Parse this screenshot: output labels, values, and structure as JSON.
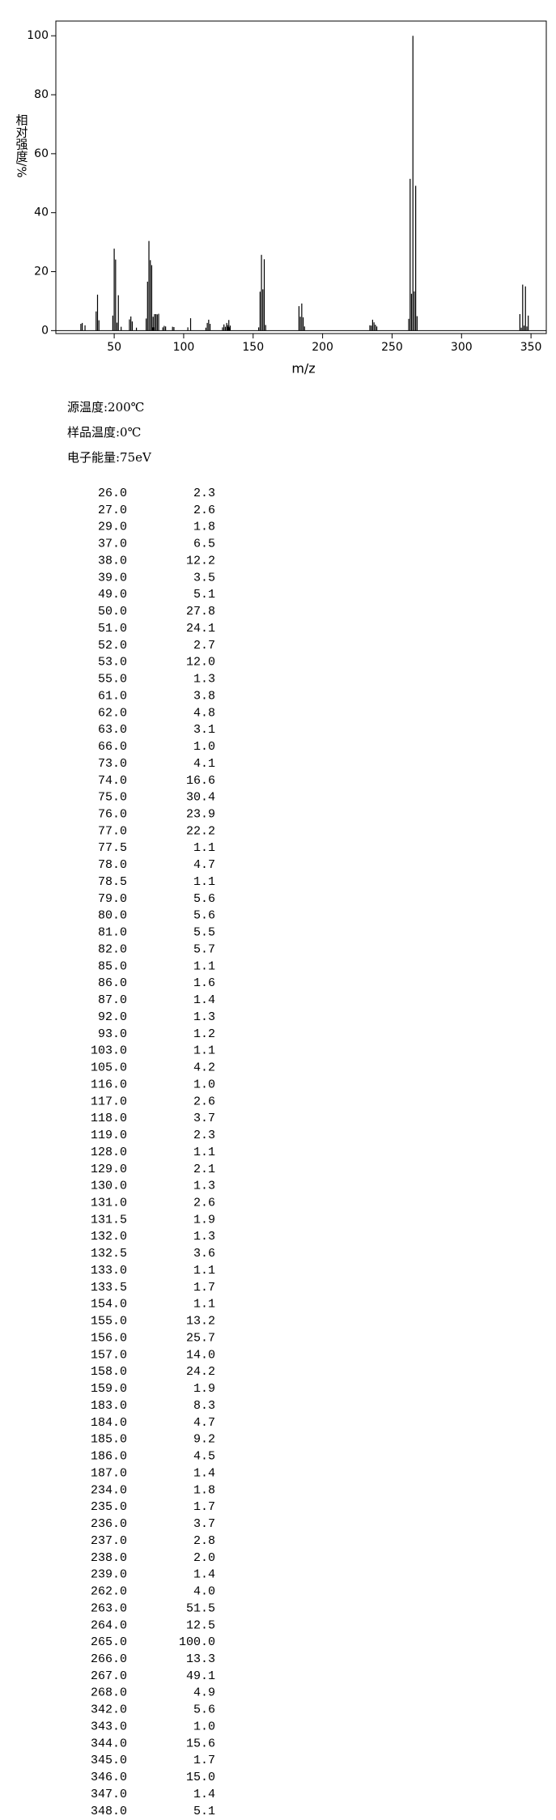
{
  "chart_data": {
    "type": "spectrum",
    "xlabel": "m/z",
    "ylabel": "相对强度/%",
    "color": "#000000",
    "x": [
      26.0,
      27.0,
      29.0,
      37.0,
      38.0,
      39.0,
      49.0,
      50.0,
      51.0,
      52.0,
      53.0,
      55.0,
      61.0,
      62.0,
      63.0,
      66.0,
      73.0,
      74.0,
      75.0,
      76.0,
      77.0,
      77.5,
      78.0,
      78.5,
      79.0,
      80.0,
      81.0,
      82.0,
      85.0,
      86.0,
      87.0,
      92.0,
      93.0,
      103.0,
      105.0,
      116.0,
      117.0,
      118.0,
      119.0,
      128.0,
      129.0,
      130.0,
      131.0,
      131.5,
      132.0,
      132.5,
      133.0,
      133.5,
      154.0,
      155.0,
      156.0,
      157.0,
      158.0,
      159.0,
      183.0,
      184.0,
      185.0,
      186.0,
      187.0,
      234.0,
      235.0,
      236.0,
      237.0,
      238.0,
      239.0,
      262.0,
      263.0,
      264.0,
      265.0,
      266.0,
      267.0,
      268.0,
      342.0,
      343.0,
      344.0,
      345.0,
      346.0,
      347.0,
      348.0
    ],
    "values": [
      2.3,
      2.6,
      1.8,
      6.5,
      12.2,
      3.5,
      5.1,
      27.8,
      24.1,
      2.7,
      12.0,
      1.3,
      3.8,
      4.8,
      3.1,
      1.0,
      4.1,
      16.6,
      30.4,
      23.9,
      22.2,
      1.1,
      4.7,
      1.1,
      5.6,
      5.6,
      5.5,
      5.7,
      1.1,
      1.6,
      1.4,
      1.3,
      1.2,
      1.1,
      4.2,
      1.0,
      2.6,
      3.7,
      2.3,
      1.1,
      2.1,
      1.3,
      2.6,
      1.9,
      1.3,
      3.6,
      1.1,
      1.7,
      1.1,
      13.2,
      25.7,
      14.0,
      24.2,
      1.9,
      8.3,
      4.7,
      9.2,
      4.5,
      1.4,
      1.8,
      1.7,
      3.7,
      2.8,
      2.0,
      1.4,
      4.0,
      51.5,
      12.5,
      100.0,
      13.3,
      49.1,
      4.9,
      5.6,
      1.0,
      15.6,
      1.7,
      15.0,
      1.4,
      5.1
    ],
    "xlim": [
      8,
      361
    ],
    "ylim": [
      -1,
      105
    ],
    "xticks": [
      50,
      100,
      150,
      200,
      250,
      300,
      350
    ],
    "yticks": [
      0,
      20,
      40,
      60,
      80,
      100
    ]
  },
  "conditions": [
    "源温度:200℃",
    "样品温度:0℃",
    "电子能量:75eV"
  ],
  "table": {
    "rows": [
      [
        "26.0",
        "2.3"
      ],
      [
        "27.0",
        "2.6"
      ],
      [
        "29.0",
        "1.8"
      ],
      [
        "37.0",
        "6.5"
      ],
      [
        "38.0",
        "12.2"
      ],
      [
        "39.0",
        "3.5"
      ],
      [
        "49.0",
        "5.1"
      ],
      [
        "50.0",
        "27.8"
      ],
      [
        "51.0",
        "24.1"
      ],
      [
        "52.0",
        "2.7"
      ],
      [
        "53.0",
        "12.0"
      ],
      [
        "55.0",
        "1.3"
      ],
      [
        "61.0",
        "3.8"
      ],
      [
        "62.0",
        "4.8"
      ],
      [
        "63.0",
        "3.1"
      ],
      [
        "66.0",
        "1.0"
      ],
      [
        "73.0",
        "4.1"
      ],
      [
        "74.0",
        "16.6"
      ],
      [
        "75.0",
        "30.4"
      ],
      [
        "76.0",
        "23.9"
      ],
      [
        "77.0",
        "22.2"
      ],
      [
        "77.5",
        "1.1"
      ],
      [
        "78.0",
        "4.7"
      ],
      [
        "78.5",
        "1.1"
      ],
      [
        "79.0",
        "5.6"
      ],
      [
        "80.0",
        "5.6"
      ],
      [
        "81.0",
        "5.5"
      ],
      [
        "82.0",
        "5.7"
      ],
      [
        "85.0",
        "1.1"
      ],
      [
        "86.0",
        "1.6"
      ],
      [
        "87.0",
        "1.4"
      ],
      [
        "92.0",
        "1.3"
      ],
      [
        "93.0",
        "1.2"
      ],
      [
        "103.0",
        "1.1"
      ],
      [
        "105.0",
        "4.2"
      ],
      [
        "116.0",
        "1.0"
      ],
      [
        "117.0",
        "2.6"
      ],
      [
        "118.0",
        "3.7"
      ],
      [
        "119.0",
        "2.3"
      ],
      [
        "128.0",
        "1.1"
      ],
      [
        "129.0",
        "2.1"
      ],
      [
        "130.0",
        "1.3"
      ],
      [
        "131.0",
        "2.6"
      ],
      [
        "131.5",
        "1.9"
      ],
      [
        "132.0",
        "1.3"
      ],
      [
        "132.5",
        "3.6"
      ],
      [
        "133.0",
        "1.1"
      ],
      [
        "133.5",
        "1.7"
      ],
      [
        "154.0",
        "1.1"
      ],
      [
        "155.0",
        "13.2"
      ],
      [
        "156.0",
        "25.7"
      ],
      [
        "157.0",
        "14.0"
      ],
      [
        "158.0",
        "24.2"
      ],
      [
        "159.0",
        "1.9"
      ],
      [
        "183.0",
        "8.3"
      ],
      [
        "184.0",
        "4.7"
      ],
      [
        "185.0",
        "9.2"
      ],
      [
        "186.0",
        "4.5"
      ],
      [
        "187.0",
        "1.4"
      ],
      [
        "234.0",
        "1.8"
      ],
      [
        "235.0",
        "1.7"
      ],
      [
        "236.0",
        "3.7"
      ],
      [
        "237.0",
        "2.8"
      ],
      [
        "238.0",
        "2.0"
      ],
      [
        "239.0",
        "1.4"
      ],
      [
        "262.0",
        "4.0"
      ],
      [
        "263.0",
        "51.5"
      ],
      [
        "264.0",
        "12.5"
      ],
      [
        "265.0",
        "100.0"
      ],
      [
        "266.0",
        "13.3"
      ],
      [
        "267.0",
        "49.1"
      ],
      [
        "268.0",
        "4.9"
      ],
      [
        "342.0",
        "5.6"
      ],
      [
        "343.0",
        "1.0"
      ],
      [
        "344.0",
        "15.6"
      ],
      [
        "345.0",
        "1.7"
      ],
      [
        "346.0",
        "15.0"
      ],
      [
        "347.0",
        "1.4"
      ],
      [
        "348.0",
        "5.1"
      ]
    ]
  }
}
